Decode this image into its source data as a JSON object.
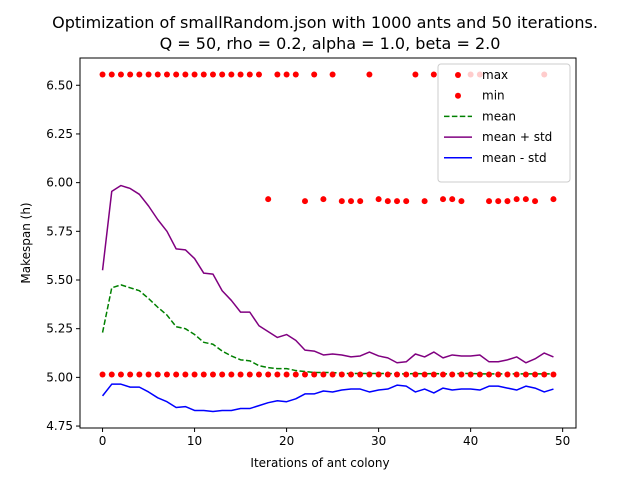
{
  "chart_data": {
    "type": "line",
    "title": "Optimization of smallRandom.json with 1000 ants and 50 iterations.",
    "subtitle": "Q = 50, rho = 0.2, alpha = 1.0, beta = 2.0",
    "xlabel": "Iterations of ant colony",
    "ylabel": "Makespan (h)",
    "xlim": [
      -2.45,
      51.45
    ],
    "ylim": [
      4.74,
      6.64
    ],
    "xticks": [
      0,
      10,
      20,
      30,
      40,
      50
    ],
    "yticks": [
      4.75,
      5.0,
      5.25,
      5.5,
      5.75,
      6.0,
      6.25,
      6.5
    ],
    "xtick_labels": [
      "0",
      "10",
      "20",
      "30",
      "40",
      "50"
    ],
    "ytick_labels": [
      "4.75",
      "5.00",
      "5.25",
      "5.50",
      "5.75",
      "6.00",
      "6.25",
      "6.50"
    ],
    "grid": false,
    "legend_position": "upper right",
    "x": [
      0,
      1,
      2,
      3,
      4,
      5,
      6,
      7,
      8,
      9,
      10,
      11,
      12,
      13,
      14,
      15,
      16,
      17,
      18,
      19,
      20,
      21,
      22,
      23,
      24,
      25,
      26,
      27,
      28,
      29,
      30,
      31,
      32,
      33,
      34,
      35,
      36,
      37,
      38,
      39,
      40,
      41,
      42,
      43,
      44,
      45,
      46,
      47,
      48,
      49
    ],
    "series": [
      {
        "name": "max",
        "style": "scatter",
        "color": "#ff0000",
        "points": [
          [
            0,
            6.555
          ],
          [
            1,
            6.555
          ],
          [
            2,
            6.555
          ],
          [
            3,
            6.555
          ],
          [
            4,
            6.555
          ],
          [
            5,
            6.555
          ],
          [
            6,
            6.555
          ],
          [
            7,
            6.555
          ],
          [
            8,
            6.555
          ],
          [
            9,
            6.555
          ],
          [
            10,
            6.555
          ],
          [
            11,
            6.555
          ],
          [
            12,
            6.555
          ],
          [
            13,
            6.555
          ],
          [
            14,
            6.555
          ],
          [
            15,
            6.555
          ],
          [
            16,
            6.555
          ],
          [
            17,
            6.555
          ],
          [
            18,
            5.915
          ],
          [
            19,
            6.555
          ],
          [
            20,
            6.555
          ],
          [
            21,
            6.555
          ],
          [
            22,
            5.905
          ],
          [
            23,
            6.555
          ],
          [
            24,
            5.915
          ],
          [
            25,
            6.555
          ],
          [
            26,
            5.905
          ],
          [
            27,
            5.905
          ],
          [
            28,
            5.905
          ],
          [
            29,
            6.555
          ],
          [
            30,
            5.915
          ],
          [
            31,
            5.905
          ],
          [
            32,
            5.905
          ],
          [
            33,
            5.905
          ],
          [
            34,
            6.555
          ],
          [
            35,
            5.905
          ],
          [
            36,
            6.555
          ],
          [
            37,
            5.915
          ],
          [
            38,
            5.915
          ],
          [
            39,
            5.905
          ],
          [
            40,
            6.555
          ],
          [
            41,
            6.555
          ],
          [
            42,
            5.905
          ],
          [
            43,
            5.905
          ],
          [
            44,
            5.905
          ],
          [
            45,
            5.915
          ],
          [
            46,
            5.915
          ],
          [
            47,
            5.905
          ],
          [
            48,
            6.555
          ],
          [
            49,
            5.915
          ]
        ]
      },
      {
        "name": "min",
        "style": "scatter",
        "color": "#ff0000",
        "points": [
          [
            0,
            5.015
          ],
          [
            1,
            5.015
          ],
          [
            2,
            5.015
          ],
          [
            3,
            5.015
          ],
          [
            4,
            5.015
          ],
          [
            5,
            5.015
          ],
          [
            6,
            5.015
          ],
          [
            7,
            5.015
          ],
          [
            8,
            5.015
          ],
          [
            9,
            5.015
          ],
          [
            10,
            5.015
          ],
          [
            11,
            5.015
          ],
          [
            12,
            5.015
          ],
          [
            13,
            5.015
          ],
          [
            14,
            5.015
          ],
          [
            15,
            5.015
          ],
          [
            16,
            5.015
          ],
          [
            17,
            5.015
          ],
          [
            18,
            5.015
          ],
          [
            19,
            5.015
          ],
          [
            20,
            5.015
          ],
          [
            21,
            5.015
          ],
          [
            22,
            5.015
          ],
          [
            23,
            5.015
          ],
          [
            24,
            5.015
          ],
          [
            25,
            5.015
          ],
          [
            26,
            5.015
          ],
          [
            27,
            5.015
          ],
          [
            28,
            5.015
          ],
          [
            29,
            5.015
          ],
          [
            30,
            5.015
          ],
          [
            31,
            5.015
          ],
          [
            32,
            5.015
          ],
          [
            33,
            5.015
          ],
          [
            34,
            5.015
          ],
          [
            35,
            5.015
          ],
          [
            36,
            5.015
          ],
          [
            37,
            5.015
          ],
          [
            38,
            5.015
          ],
          [
            39,
            5.015
          ],
          [
            40,
            5.015
          ],
          [
            41,
            5.015
          ],
          [
            42,
            5.015
          ],
          [
            43,
            5.015
          ],
          [
            44,
            5.015
          ],
          [
            45,
            5.015
          ],
          [
            46,
            5.015
          ],
          [
            47,
            5.015
          ],
          [
            48,
            5.015
          ],
          [
            49,
            5.015
          ]
        ]
      },
      {
        "name": "mean",
        "style": "dashed",
        "color": "#008000",
        "values": [
          5.23,
          5.46,
          5.475,
          5.46,
          5.445,
          5.405,
          5.36,
          5.32,
          5.26,
          5.25,
          5.22,
          5.18,
          5.17,
          5.135,
          5.11,
          5.09,
          5.085,
          5.06,
          5.05,
          5.045,
          5.045,
          5.035,
          5.03,
          5.025,
          5.025,
          5.025,
          5.02,
          5.02,
          5.02,
          5.02,
          5.02,
          5.02,
          5.018,
          5.018,
          5.02,
          5.018,
          5.02,
          5.018,
          5.018,
          5.02,
          5.02,
          5.018,
          5.018,
          5.018,
          5.018,
          5.018,
          5.018,
          5.018,
          5.018,
          5.018
        ]
      },
      {
        "name": "mean + std",
        "style": "solid",
        "color": "#800080",
        "values": [
          5.55,
          5.955,
          5.985,
          5.97,
          5.94,
          5.88,
          5.81,
          5.75,
          5.66,
          5.655,
          5.61,
          5.535,
          5.53,
          5.445,
          5.395,
          5.335,
          5.335,
          5.265,
          5.235,
          5.205,
          5.22,
          5.19,
          5.14,
          5.135,
          5.115,
          5.12,
          5.115,
          5.105,
          5.11,
          5.13,
          5.11,
          5.1,
          5.075,
          5.08,
          5.12,
          5.105,
          5.13,
          5.1,
          5.115,
          5.11,
          5.11,
          5.115,
          5.08,
          5.08,
          5.09,
          5.105,
          5.075,
          5.095,
          5.125,
          5.105
        ]
      },
      {
        "name": "mean - std",
        "style": "solid",
        "color": "#0000ff",
        "values": [
          4.905,
          4.965,
          4.965,
          4.95,
          4.95,
          4.925,
          4.895,
          4.875,
          4.845,
          4.85,
          4.83,
          4.83,
          4.825,
          4.83,
          4.83,
          4.84,
          4.84,
          4.855,
          4.87,
          4.88,
          4.875,
          4.89,
          4.915,
          4.915,
          4.93,
          4.925,
          4.935,
          4.94,
          4.94,
          4.925,
          4.935,
          4.94,
          4.96,
          4.955,
          4.925,
          4.94,
          4.92,
          4.945,
          4.935,
          4.94,
          4.94,
          4.935,
          4.955,
          4.955,
          4.945,
          4.935,
          4.955,
          4.945,
          4.925,
          4.94
        ]
      }
    ]
  }
}
